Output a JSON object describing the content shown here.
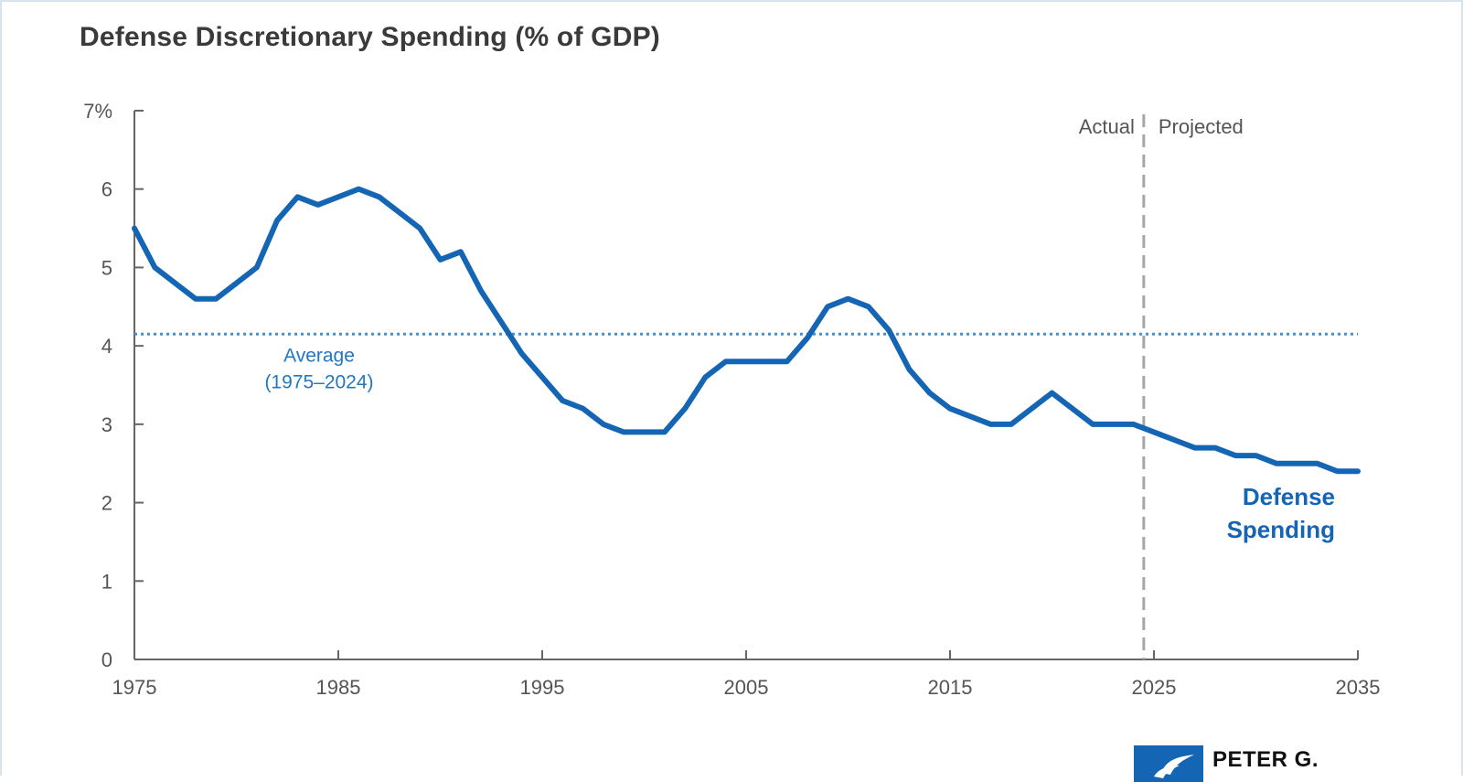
{
  "chart_data": {
    "type": "line",
    "title": "Defense Discretionary Spending (% of GDP)",
    "xlim": [
      1975,
      2035
    ],
    "ylim": [
      0,
      7
    ],
    "x_ticks": [
      "1975",
      "1985",
      "1995",
      "2005",
      "2015",
      "2025",
      "2035"
    ],
    "y_ticks": [
      "0",
      "1",
      "2",
      "3",
      "4",
      "5",
      "6",
      "7%"
    ],
    "grid": false,
    "series": [
      {
        "name": "Defense Spending",
        "color": "#1565b5",
        "x": [
          1975,
          1976,
          1977,
          1978,
          1979,
          1980,
          1981,
          1982,
          1983,
          1984,
          1985,
          1986,
          1987,
          1988,
          1989,
          1990,
          1991,
          1992,
          1993,
          1994,
          1995,
          1996,
          1997,
          1998,
          1999,
          2000,
          2001,
          2002,
          2003,
          2004,
          2005,
          2006,
          2007,
          2008,
          2009,
          2010,
          2011,
          2012,
          2013,
          2014,
          2015,
          2016,
          2017,
          2018,
          2019,
          2020,
          2021,
          2022,
          2023,
          2024,
          2025,
          2026,
          2027,
          2028,
          2029,
          2030,
          2031,
          2032,
          2033,
          2034,
          2035
        ],
        "y": [
          5.5,
          5.0,
          4.8,
          4.6,
          4.6,
          4.8,
          5.0,
          5.6,
          5.9,
          5.8,
          5.9,
          6.0,
          5.9,
          5.7,
          5.5,
          5.1,
          5.2,
          4.7,
          4.3,
          3.9,
          3.6,
          3.3,
          3.2,
          3.0,
          2.9,
          2.9,
          2.9,
          3.2,
          3.6,
          3.8,
          3.8,
          3.8,
          3.8,
          4.1,
          4.5,
          4.6,
          4.5,
          4.2,
          3.7,
          3.4,
          3.2,
          3.1,
          3.0,
          3.0,
          3.2,
          3.4,
          3.2,
          3.0,
          3.0,
          3.0,
          2.9,
          2.8,
          2.7,
          2.7,
          2.6,
          2.6,
          2.5,
          2.5,
          2.5,
          2.4,
          2.4
        ]
      }
    ],
    "average": {
      "label_line1": "Average",
      "label_line2": "(1975–2024)",
      "value": 4.15,
      "color": "#4a90c8"
    },
    "divider": {
      "x": 2024.5,
      "left_label": "Actual",
      "right_label": "Projected",
      "color": "#a6a6a6"
    },
    "series_label_line1": "Defense",
    "series_label_line2": "Spending"
  },
  "logo": {
    "text": "PETER G."
  },
  "colors": {
    "axis": "#666666",
    "series": "#1565b5",
    "title": "#3a3a3a"
  }
}
